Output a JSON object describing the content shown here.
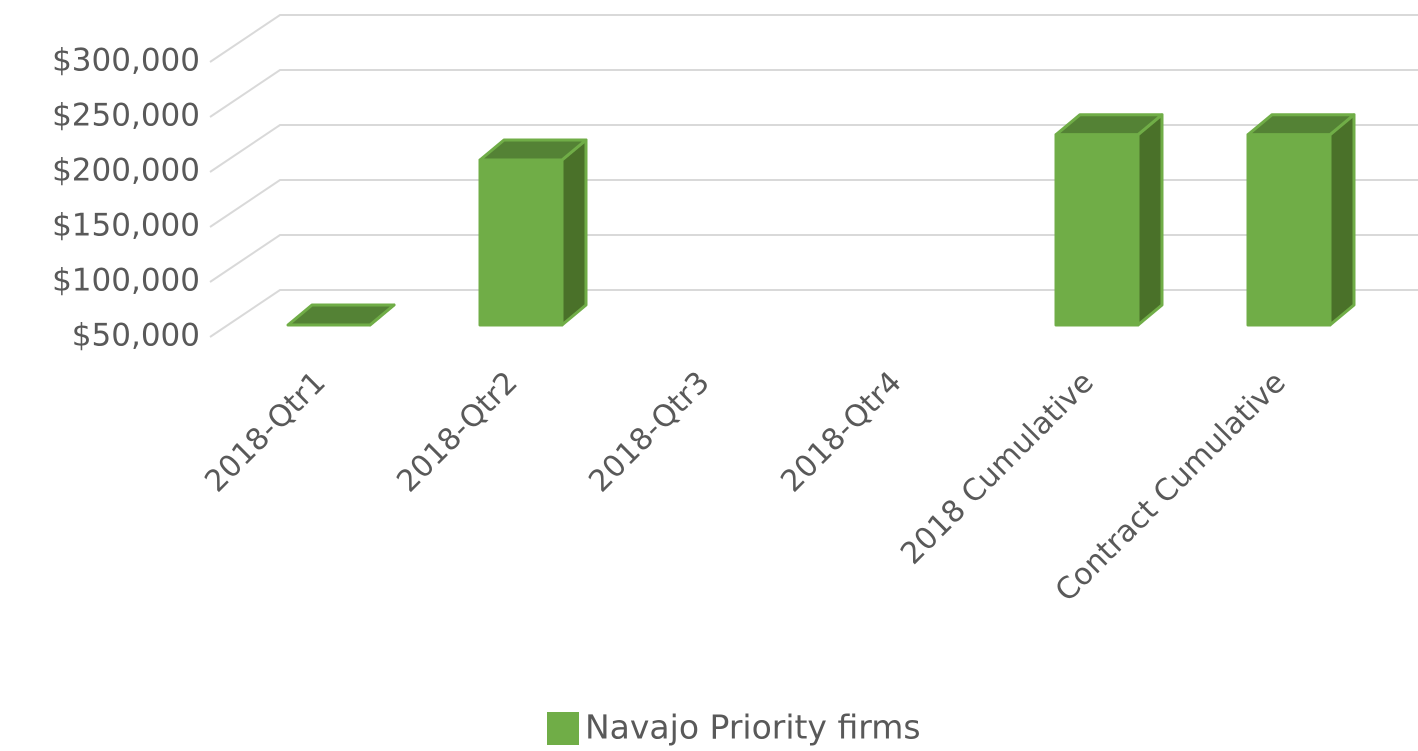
{
  "chart_data": {
    "type": "bar3d",
    "categories": [
      "2018-Qtr1",
      "2018-Qtr2",
      "2018-Qtr3",
      "2018-Qtr4",
      "2018 Cumulative",
      "Contract Cumulative"
    ],
    "series": [
      {
        "name": "Navajo Priority firms",
        "color": "#70ad47",
        "values": [
          23000,
          200000,
          null,
          null,
          223000,
          223000
        ]
      }
    ],
    "ylim": [
      50000,
      300000
    ],
    "yticks": [
      {
        "value": 50000,
        "label": "$50,000"
      },
      {
        "value": 100000,
        "label": "$100,000"
      },
      {
        "value": 150000,
        "label": "$150,000"
      },
      {
        "value": 200000,
        "label": "$200,000"
      },
      {
        "value": 250000,
        "label": "$250,000"
      },
      {
        "value": 300000,
        "label": "$300,000"
      }
    ],
    "grid": true,
    "legend": "bottom"
  }
}
